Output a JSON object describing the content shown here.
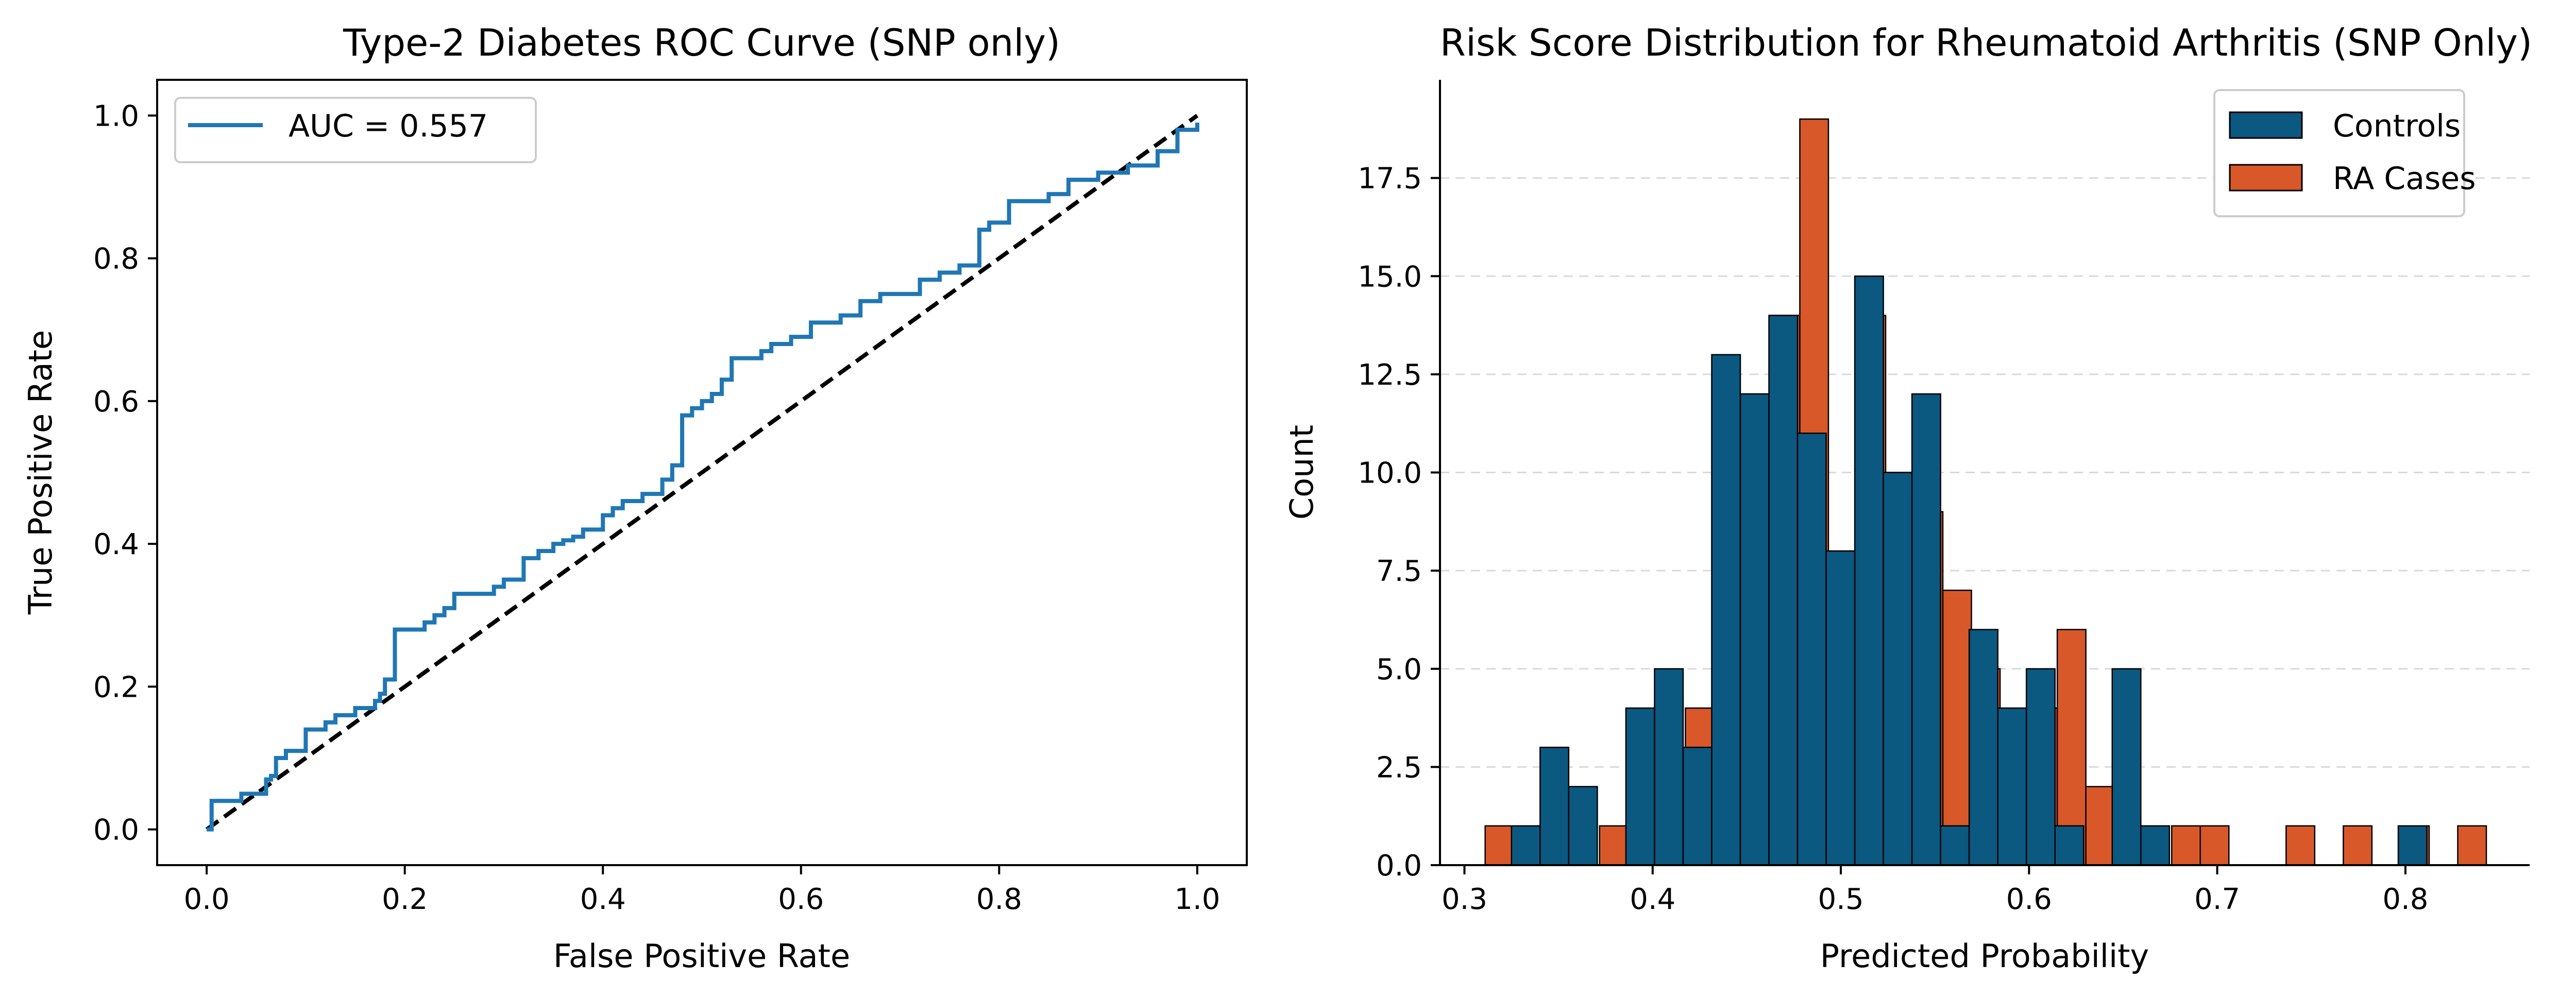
{
  "colors": {
    "roc_line": "#1f77b4",
    "diagonal": "#000000",
    "controls": "#0b5881",
    "cases": "#d8582a",
    "grid": "#d9d9d9"
  },
  "chart_data": [
    {
      "type": "line",
      "title": "Type-2 Diabetes ROC Curve (SNP only)",
      "xlabel": "False Positive Rate",
      "ylabel": "True Positive Rate",
      "xlim": [
        -0.05,
        1.05
      ],
      "ylim": [
        -0.05,
        1.05
      ],
      "xticks": [
        "0.0",
        "0.2",
        "0.4",
        "0.6",
        "0.8",
        "1.0"
      ],
      "yticks": [
        "0.0",
        "0.2",
        "0.4",
        "0.6",
        "0.8",
        "1.0"
      ],
      "legend_position": "top-left",
      "grid": false,
      "series": [
        {
          "name": "AUC = 0.557",
          "style": "step",
          "x": [
            0.0,
            0.005,
            0.005,
            0.035,
            0.05,
            0.06,
            0.065,
            0.07,
            0.08,
            0.1,
            0.11,
            0.12,
            0.13,
            0.14,
            0.15,
            0.16,
            0.17,
            0.175,
            0.18,
            0.19,
            0.22,
            0.23,
            0.24,
            0.25,
            0.28,
            0.29,
            0.3,
            0.32,
            0.335,
            0.35,
            0.36,
            0.37,
            0.38,
            0.39,
            0.4,
            0.41,
            0.42,
            0.44,
            0.46,
            0.47,
            0.48,
            0.49,
            0.5,
            0.51,
            0.52,
            0.53,
            0.56,
            0.57,
            0.59,
            0.61,
            0.64,
            0.66,
            0.68,
            0.72,
            0.74,
            0.75,
            0.76,
            0.78,
            0.79,
            0.81,
            0.85,
            0.87,
            0.9,
            0.93,
            0.96,
            0.98,
            1.0
          ],
          "y": [
            0.0,
            0.015,
            0.04,
            0.05,
            0.05,
            0.07,
            0.075,
            0.1,
            0.11,
            0.14,
            0.14,
            0.15,
            0.16,
            0.16,
            0.17,
            0.17,
            0.18,
            0.19,
            0.21,
            0.28,
            0.29,
            0.3,
            0.31,
            0.33,
            0.33,
            0.34,
            0.35,
            0.38,
            0.39,
            0.4,
            0.405,
            0.41,
            0.42,
            0.42,
            0.44,
            0.45,
            0.46,
            0.47,
            0.49,
            0.51,
            0.58,
            0.59,
            0.6,
            0.61,
            0.63,
            0.66,
            0.67,
            0.68,
            0.69,
            0.71,
            0.72,
            0.74,
            0.75,
            0.77,
            0.78,
            0.78,
            0.79,
            0.84,
            0.85,
            0.88,
            0.89,
            0.91,
            0.92,
            0.93,
            0.95,
            0.98,
            0.99
          ]
        },
        {
          "name": "",
          "style": "dashed",
          "x": [
            0.0,
            1.0
          ],
          "y": [
            0.0,
            1.0
          ]
        }
      ]
    },
    {
      "type": "bar",
      "title": "Risk Score Distribution for Rheumatoid Arthritis (SNP Only)",
      "xlabel": "Predicted Probability",
      "ylabel": "Count",
      "xlim": [
        0.287,
        0.866
      ],
      "ylim": [
        0,
        20.0
      ],
      "xticks": [
        "0.3",
        "0.4",
        "0.5",
        "0.6",
        "0.7",
        "0.8"
      ],
      "yticks": [
        "0.0",
        "2.5",
        "5.0",
        "7.5",
        "10.0",
        "12.5",
        "15.0",
        "17.5"
      ],
      "legend_position": "top-right",
      "grid": "y-dashed",
      "bin_width": 0.0152,
      "series": [
        {
          "name": "RA Cases",
          "bin_starts": [
            0.311,
            0.3262,
            0.3414,
            0.3566,
            0.3718,
            0.387,
            0.4022,
            0.4174,
            0.4326,
            0.4478,
            0.463,
            0.4782,
            0.4934,
            0.5086,
            0.5238,
            0.539,
            0.5542,
            0.5694,
            0.5846,
            0.5998,
            0.615,
            0.6302,
            0.6454,
            0.6606,
            0.6758,
            0.691,
            0.7062,
            0.7214,
            0.7366,
            0.7518,
            0.767,
            0.7822,
            0.7974,
            0.8126,
            0.8278
          ],
          "values": [
            1,
            1,
            0,
            0,
            1,
            3,
            3,
            4,
            10,
            12,
            14,
            19,
            8,
            14,
            10,
            9,
            7,
            5,
            3,
            4,
            6,
            2,
            0,
            0,
            1,
            1,
            0,
            0,
            1,
            0,
            1,
            0,
            1,
            0,
            1
          ]
        },
        {
          "name": "Controls",
          "bin_starts": [
            0.325,
            0.3402,
            0.3554,
            0.3706,
            0.3858,
            0.401,
            0.4162,
            0.4314,
            0.4466,
            0.4618,
            0.477,
            0.4922,
            0.5074,
            0.5226,
            0.5378,
            0.553,
            0.5682,
            0.5834,
            0.5986,
            0.6138,
            0.629,
            0.6442,
            0.6594,
            0.6746,
            0.6898,
            0.705,
            0.7202,
            0.7354,
            0.7506,
            0.7658,
            0.781,
            0.7962
          ],
          "values": [
            1,
            3,
            2,
            0,
            4,
            5,
            3,
            13,
            12,
            14,
            11,
            8,
            15,
            10,
            12,
            1,
            6,
            4,
            5,
            1,
            0,
            5,
            1,
            0,
            0,
            0,
            0,
            0,
            0,
            0,
            0,
            1
          ]
        }
      ]
    }
  ]
}
